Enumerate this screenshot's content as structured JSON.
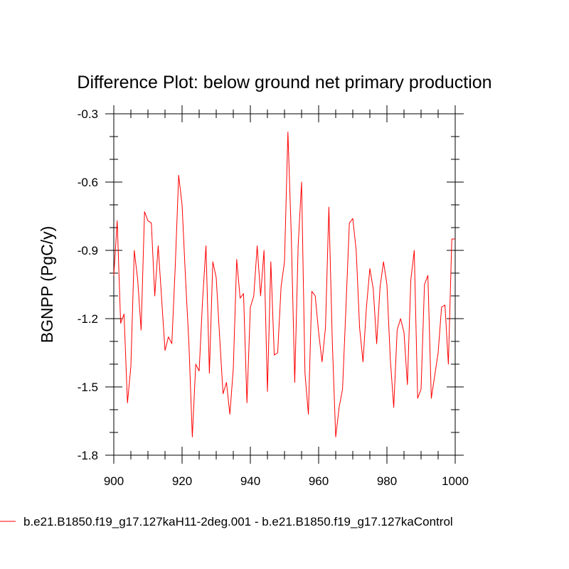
{
  "chart_data": {
    "type": "line",
    "title": "Difference Plot: below ground net primary production",
    "xlabel": "",
    "ylabel": "BGNPP  (PgC/y)",
    "xlim": [
      900,
      1000
    ],
    "ylim": [
      -1.8,
      -0.3
    ],
    "xticks": [
      900,
      920,
      940,
      960,
      980,
      1000
    ],
    "xtick_labels": [
      "900",
      "920",
      "940",
      "960",
      "980",
      "1000"
    ],
    "yticks": [
      -1.8,
      -1.5,
      -1.2,
      -0.9,
      -0.6,
      -0.3
    ],
    "ytick_labels": [
      "-1.8",
      "-1.5",
      "-1.2",
      "-0.9",
      "-0.6",
      "-0.3"
    ],
    "grid": false,
    "legend_position": "bottom",
    "series": [
      {
        "name": "b.e21.B1850.f19_g17.127kaH11-2deg.001 - b.e21.B1850.f19_g17.127kaControl",
        "color": "#ff0000",
        "x": [
          900,
          901,
          902,
          903,
          904,
          905,
          906,
          907,
          908,
          909,
          910,
          911,
          912,
          913,
          914,
          915,
          916,
          917,
          918,
          919,
          920,
          921,
          922,
          923,
          924,
          925,
          926,
          927,
          928,
          929,
          930,
          931,
          932,
          933,
          934,
          935,
          936,
          937,
          938,
          939,
          940,
          941,
          942,
          943,
          944,
          945,
          946,
          947,
          948,
          949,
          950,
          951,
          952,
          953,
          954,
          955,
          956,
          957,
          958,
          959,
          960,
          961,
          962,
          963,
          964,
          965,
          966,
          967,
          968,
          969,
          970,
          971,
          972,
          973,
          974,
          975,
          976,
          977,
          978,
          979,
          980,
          981,
          982,
          983,
          984,
          985,
          986,
          987,
          988,
          989,
          990,
          991,
          992,
          993,
          994,
          995,
          996,
          997,
          998,
          999,
          1000
        ],
        "values": [
          -1.01,
          -0.77,
          -1.22,
          -1.18,
          -1.57,
          -1.41,
          -0.9,
          -1.03,
          -1.25,
          -0.73,
          -0.77,
          -0.78,
          -1.1,
          -0.88,
          -1.11,
          -1.34,
          -1.28,
          -1.31,
          -0.97,
          -0.57,
          -0.7,
          -1.02,
          -1.31,
          -1.72,
          -1.4,
          -1.43,
          -1.12,
          -0.88,
          -1.44,
          -0.95,
          -1.02,
          -1.28,
          -1.53,
          -1.48,
          -1.62,
          -1.42,
          -0.94,
          -1.11,
          -1.09,
          -1.57,
          -1.15,
          -1.1,
          -0.88,
          -1.1,
          -0.9,
          -1.52,
          -0.95,
          -1.36,
          -1.35,
          -1.06,
          -0.95,
          -0.38,
          -0.84,
          -1.48,
          -0.88,
          -0.6,
          -1.44,
          -1.62,
          -1.08,
          -1.1,
          -1.26,
          -1.39,
          -1.24,
          -0.71,
          -1.3,
          -1.72,
          -1.59,
          -1.51,
          -1.15,
          -0.78,
          -0.76,
          -0.9,
          -1.24,
          -1.39,
          -1.15,
          -0.98,
          -1.07,
          -1.31,
          -1.06,
          -0.95,
          -1.05,
          -1.38,
          -1.59,
          -1.25,
          -1.2,
          -1.26,
          -1.49,
          -1.03,
          -0.9,
          -1.55,
          -1.51,
          -1.05,
          -1.01,
          -1.55,
          -1.45,
          -1.35,
          -1.15,
          -1.14,
          -1.4,
          -0.85,
          -0.85
        ]
      }
    ]
  }
}
